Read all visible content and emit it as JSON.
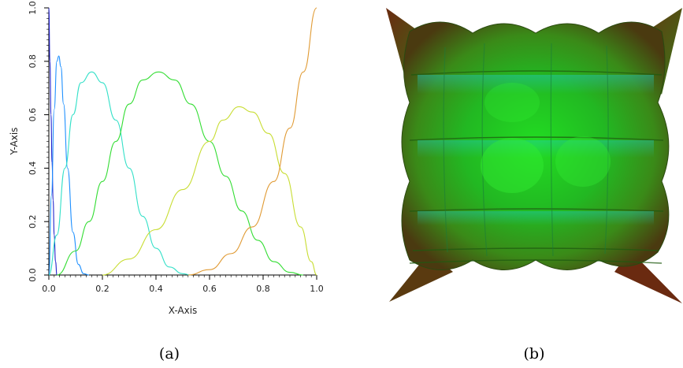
{
  "captions": {
    "left": "(a)",
    "right": "(b)"
  },
  "chart_data": {
    "type": "line",
    "title": "",
    "xlabel": "X-Axis",
    "ylabel": "Y-Axis",
    "xlim": [
      0.0,
      1.0
    ],
    "ylim": [
      0.0,
      1.0
    ],
    "x_ticks": [
      "0.0",
      "0.2",
      "0.4",
      "0.6",
      "0.8",
      "1.0"
    ],
    "y_ticks": [
      "0.0",
      "0.2",
      "0.4",
      "0.6",
      "0.8",
      "1.0"
    ],
    "grid": false,
    "legend": "none",
    "series": [
      {
        "color": "#2222cc",
        "x": [
          0.0,
          0.004,
          0.008,
          0.012,
          0.016,
          0.02,
          0.025,
          0.03
        ],
        "y": [
          1.0,
          0.8,
          0.6,
          0.42,
          0.28,
          0.15,
          0.05,
          0.0
        ]
      },
      {
        "color": "#1e90ff",
        "x": [
          0.0,
          0.01,
          0.02,
          0.03,
          0.037,
          0.045,
          0.055,
          0.07,
          0.09,
          0.11,
          0.13,
          0.15
        ],
        "y": [
          0.0,
          0.3,
          0.62,
          0.8,
          0.82,
          0.78,
          0.64,
          0.4,
          0.16,
          0.04,
          0.005,
          0.0
        ]
      },
      {
        "color": "#33e0c8",
        "x": [
          0.0,
          0.03,
          0.06,
          0.09,
          0.12,
          0.16,
          0.2,
          0.25,
          0.3,
          0.35,
          0.4,
          0.45,
          0.5,
          0.53
        ],
        "y": [
          0.0,
          0.15,
          0.4,
          0.6,
          0.72,
          0.76,
          0.72,
          0.58,
          0.4,
          0.22,
          0.1,
          0.03,
          0.005,
          0.0
        ]
      },
      {
        "color": "#33dd33",
        "x": [
          0.03,
          0.1,
          0.15,
          0.2,
          0.25,
          0.3,
          0.35,
          0.41,
          0.47,
          0.53,
          0.6,
          0.66,
          0.72,
          0.78,
          0.84,
          0.9,
          0.95
        ],
        "y": [
          0.0,
          0.09,
          0.2,
          0.35,
          0.5,
          0.64,
          0.73,
          0.76,
          0.73,
          0.64,
          0.5,
          0.37,
          0.24,
          0.13,
          0.05,
          0.01,
          0.0
        ]
      },
      {
        "color": "#c8dd33",
        "x": [
          0.2,
          0.3,
          0.4,
          0.5,
          0.6,
          0.65,
          0.71,
          0.76,
          0.82,
          0.88,
          0.94,
          0.98,
          1.0
        ],
        "y": [
          0.0,
          0.06,
          0.17,
          0.32,
          0.5,
          0.58,
          0.63,
          0.61,
          0.53,
          0.38,
          0.18,
          0.05,
          0.0
        ]
      },
      {
        "color": "#e09a33",
        "x": [
          0.52,
          0.6,
          0.68,
          0.76,
          0.84,
          0.9,
          0.95,
          1.0
        ],
        "y": [
          0.0,
          0.02,
          0.08,
          0.18,
          0.35,
          0.55,
          0.76,
          1.0
        ]
      }
    ]
  },
  "surface": {
    "colors": {
      "green": "#22cc22",
      "cyan": "#22cccc",
      "dark": "#2a4a10",
      "brown": "#6a2a10"
    }
  }
}
